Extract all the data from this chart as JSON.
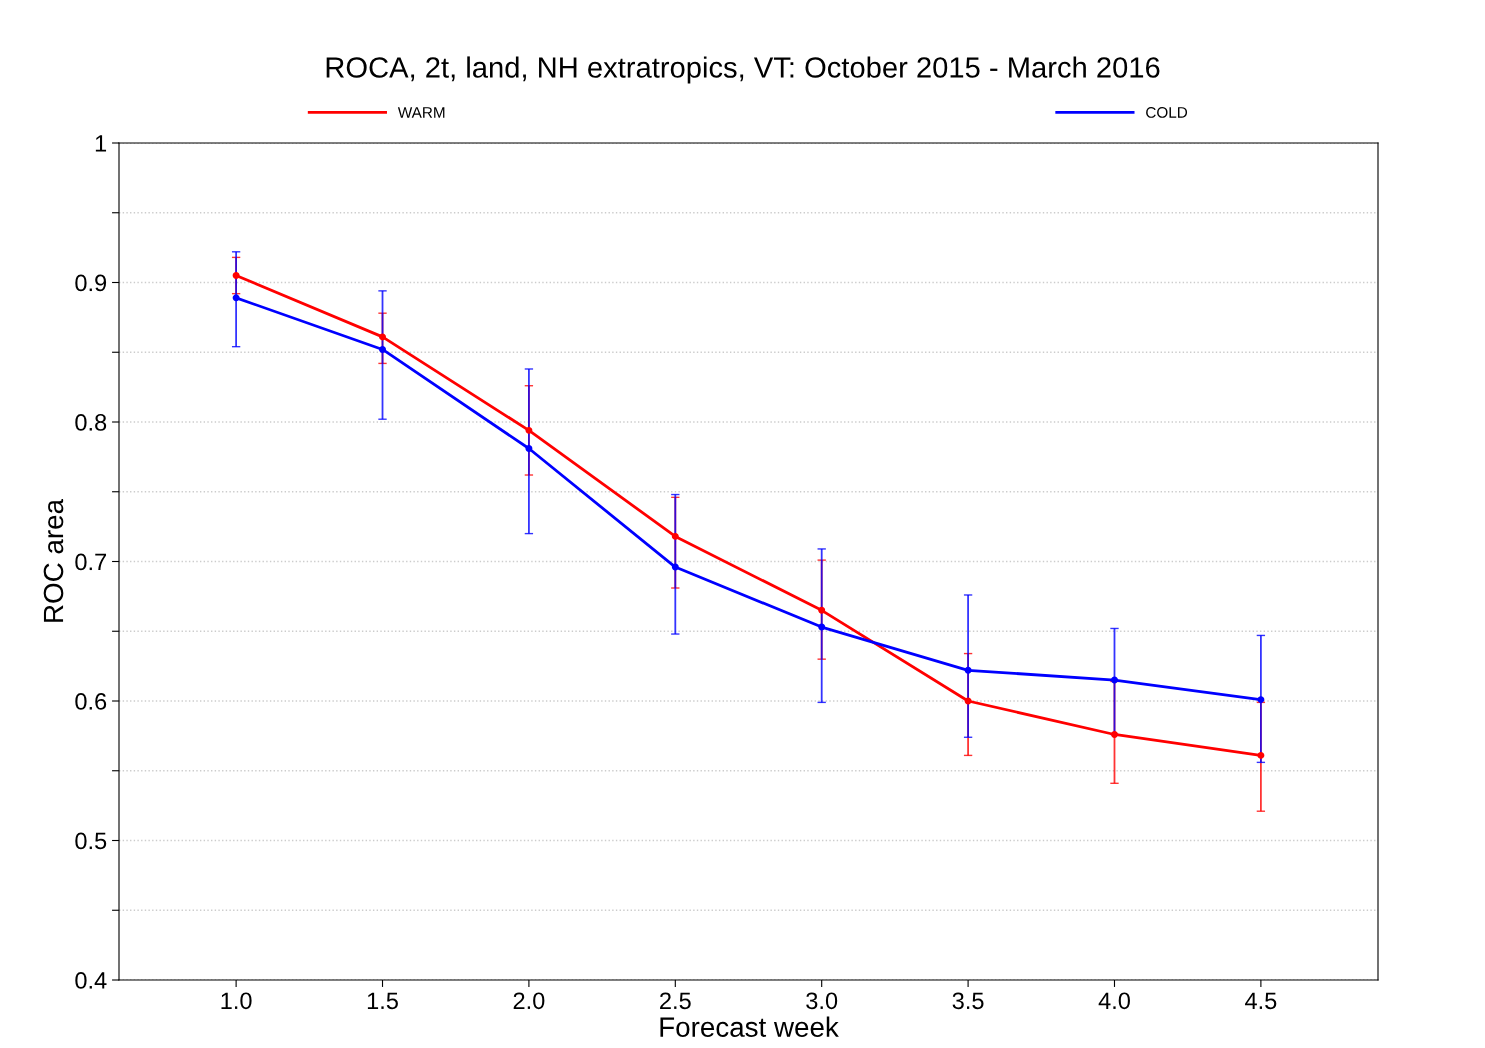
{
  "chart_data": {
    "type": "line",
    "title": "ROCA, 2t, land, NH extratropics, VT: October 2015 - March 2016",
    "xlabel": "Forecast week",
    "ylabel": "ROC area",
    "x": [
      1.0,
      1.5,
      2.0,
      2.5,
      3.0,
      3.5,
      4.0,
      4.5
    ],
    "series": [
      {
        "name": "WARM",
        "color": "#ff0000",
        "values": [
          0.905,
          0.861,
          0.794,
          0.718,
          0.665,
          0.6,
          0.576,
          0.561
        ],
        "errors": [
          [
            0.892,
            0.918
          ],
          [
            0.842,
            0.878
          ],
          [
            0.762,
            0.826
          ],
          [
            0.681,
            0.746
          ],
          [
            0.63,
            0.701
          ],
          [
            0.561,
            0.634
          ],
          [
            0.541,
            0.614
          ],
          [
            0.521,
            0.599
          ]
        ]
      },
      {
        "name": "COLD",
        "color": "#0000ff",
        "values": [
          0.889,
          0.852,
          0.781,
          0.696,
          0.653,
          0.622,
          0.615,
          0.601
        ],
        "errors": [
          [
            0.854,
            0.922
          ],
          [
            0.802,
            0.894
          ],
          [
            0.72,
            0.838
          ],
          [
            0.648,
            0.748
          ],
          [
            0.599,
            0.709
          ],
          [
            0.574,
            0.676
          ],
          [
            0.576,
            0.652
          ],
          [
            0.556,
            0.647
          ]
        ]
      }
    ],
    "xlim": [
      0.6,
      4.9
    ],
    "ylim": [
      0.4,
      1.0
    ],
    "xticks": [
      {
        "value": 1.0,
        "label": "1.0"
      },
      {
        "value": 1.5,
        "label": "1.5"
      },
      {
        "value": 2.0,
        "label": "2.0"
      },
      {
        "value": 2.5,
        "label": "2.5"
      },
      {
        "value": 3.0,
        "label": "3.0"
      },
      {
        "value": 3.5,
        "label": "3.5"
      },
      {
        "value": 4.0,
        "label": "4.0"
      },
      {
        "value": 4.5,
        "label": "4.5"
      }
    ],
    "yticks": [
      0.4,
      {
        "value": 0.45,
        "label": null
      },
      0.5,
      {
        "value": 0.55,
        "label": null
      },
      0.6,
      {
        "value": 0.65,
        "label": null
      },
      0.7,
      {
        "value": 0.75,
        "label": null
      },
      0.8,
      {
        "value": 0.85,
        "label": null
      },
      0.9,
      {
        "value": 0.95,
        "label": null
      },
      1
    ],
    "grid": "y",
    "legend": "top",
    "marker": "circle",
    "line_style": "solid"
  }
}
